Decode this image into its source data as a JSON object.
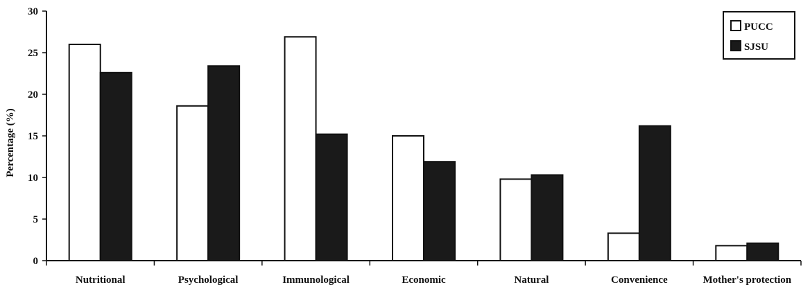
{
  "chart_data": {
    "type": "bar",
    "title": "",
    "xlabel": "",
    "ylabel": "Percentage (%)",
    "ylim": [
      0,
      30
    ],
    "yticks": [
      0,
      5,
      10,
      15,
      20,
      25,
      30
    ],
    "grid": false,
    "legend_position": "top-right",
    "categories": [
      "Nutritional",
      "Psychological",
      "Immunological",
      "Economic",
      "Natural",
      "Convenience",
      "Mother's protection"
    ],
    "series": [
      {
        "name": "PUCC",
        "color": "#ffffff",
        "values": [
          26,
          18.6,
          26.9,
          15,
          9.8,
          3.3,
          1.8
        ]
      },
      {
        "name": "SJSU",
        "color": "#1a1a1a",
        "values": [
          22.6,
          23.4,
          15.2,
          11.9,
          10.3,
          16.2,
          2.1
        ]
      }
    ]
  }
}
